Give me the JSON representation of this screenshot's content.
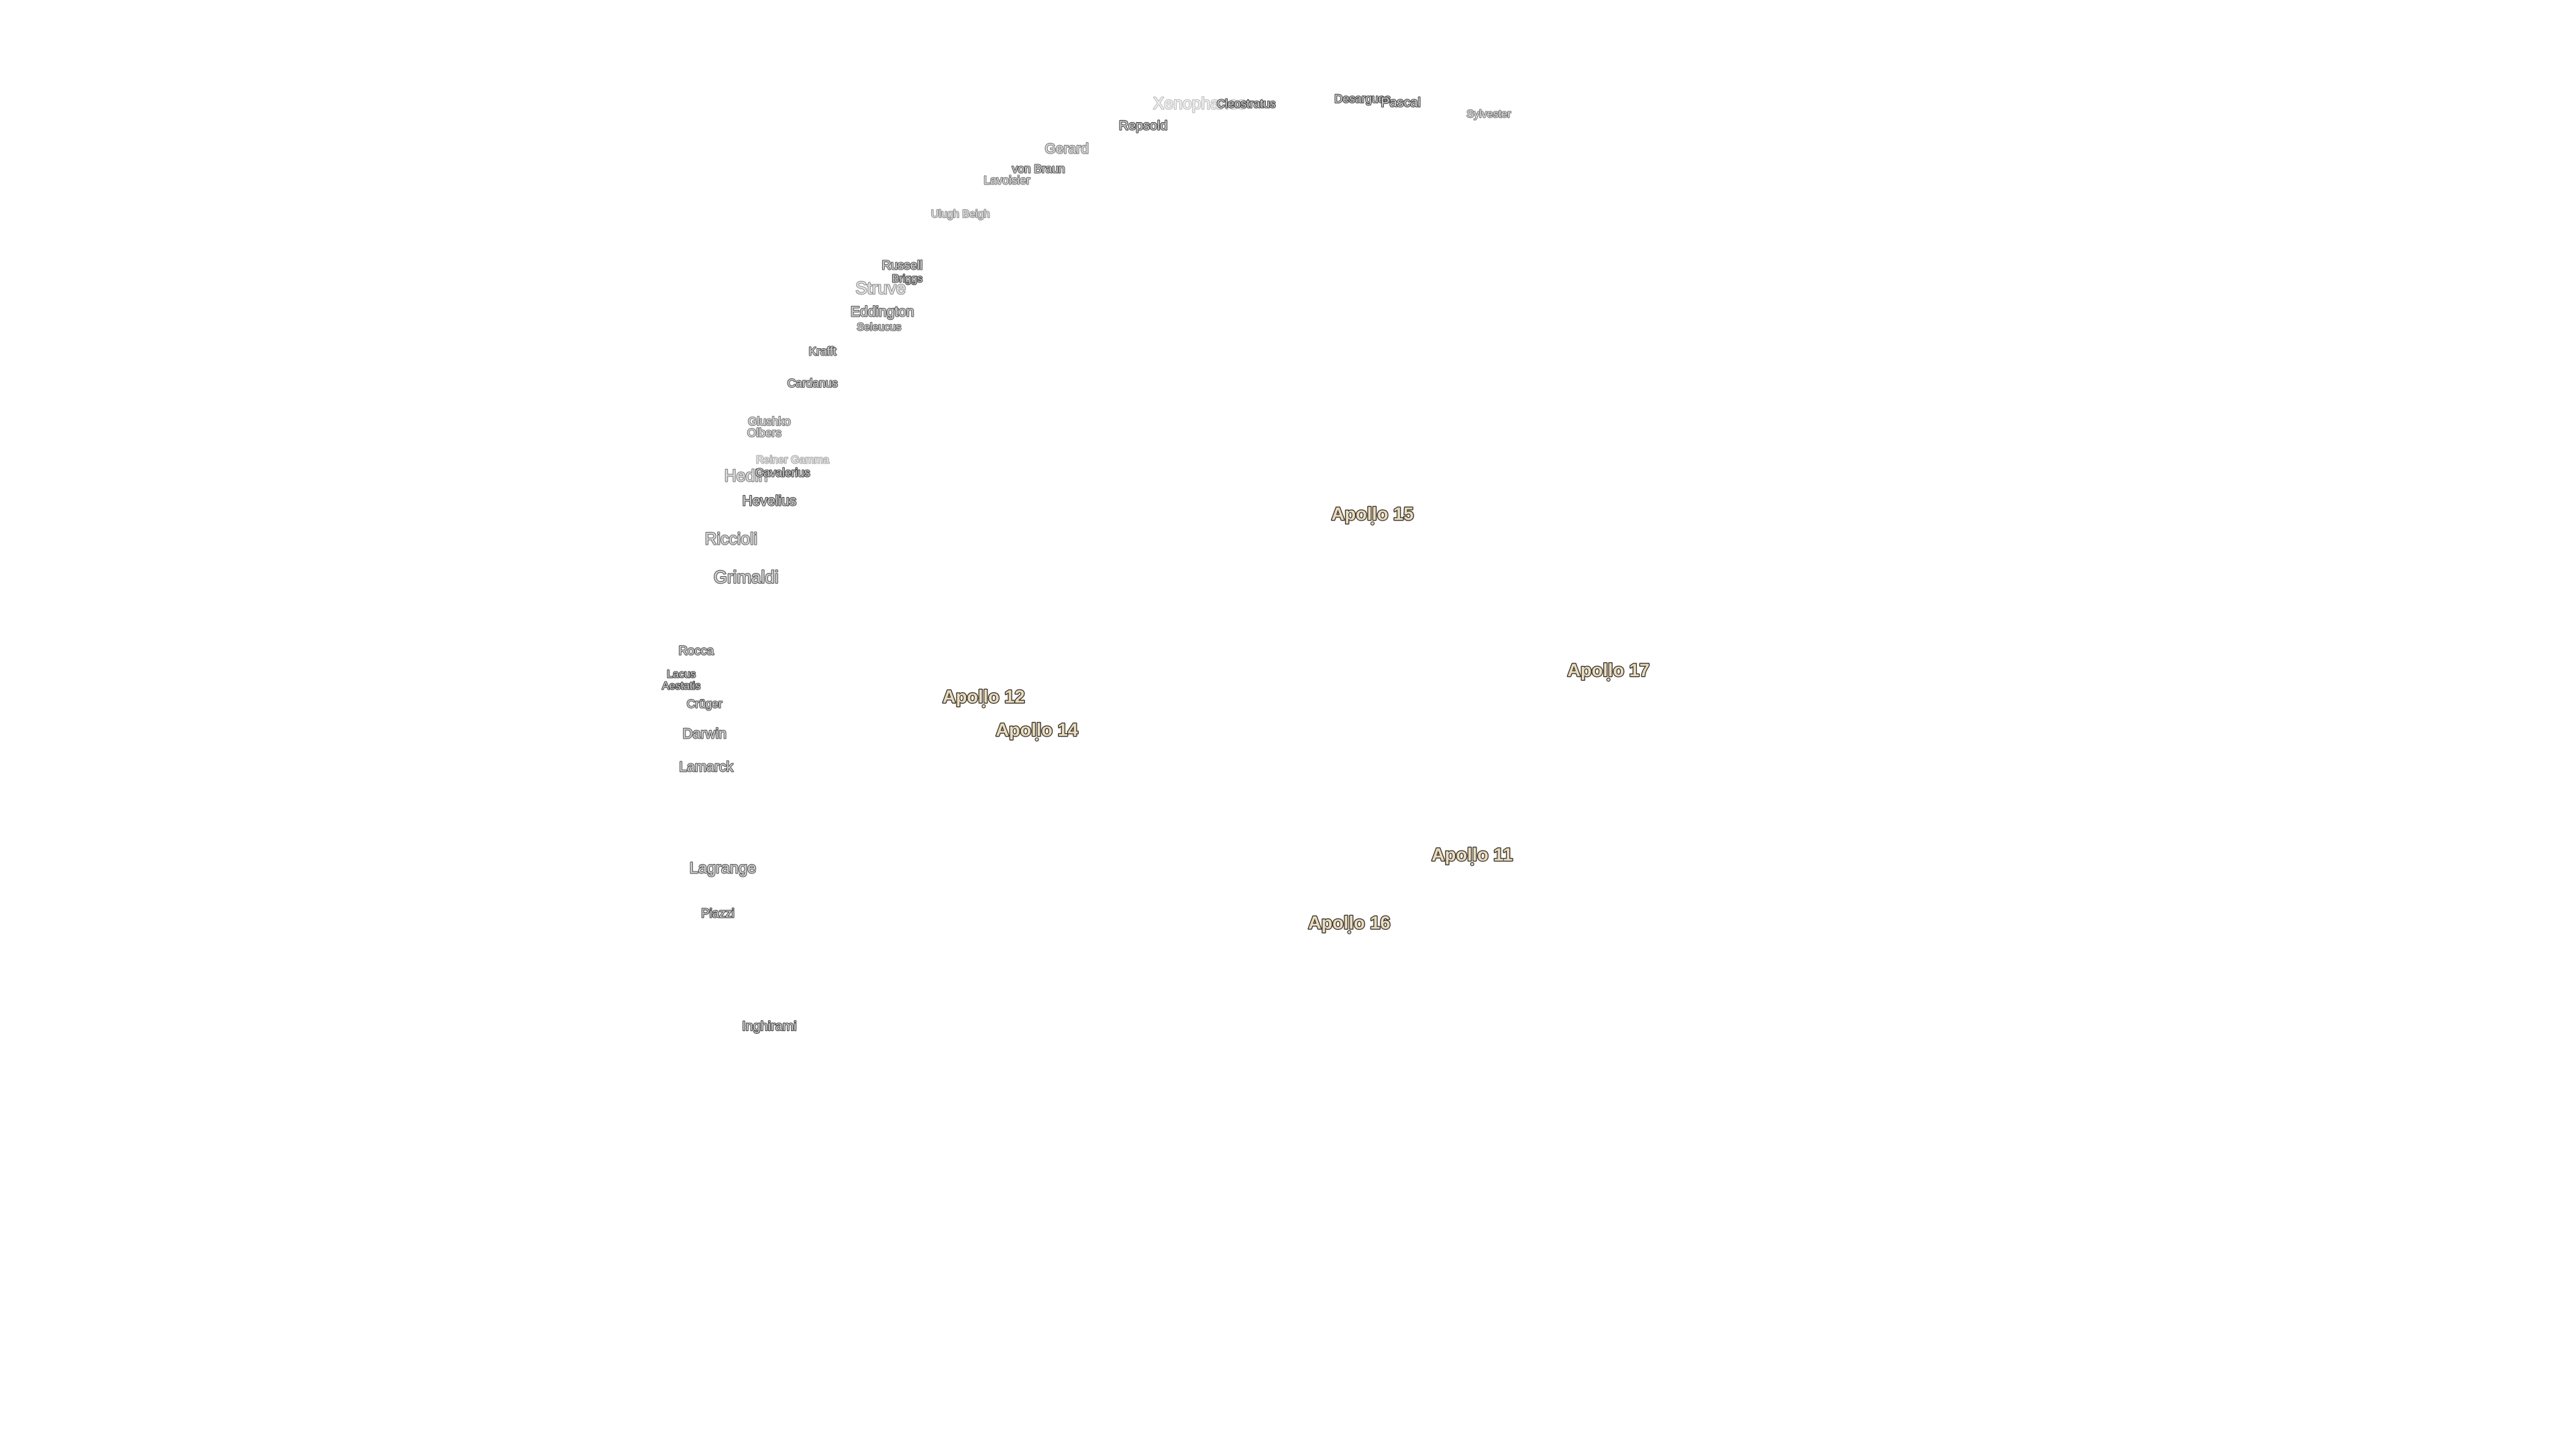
{
  "craters": [
    {
      "name": "Xenophanes"
    },
    {
      "name": "Cleostratus"
    },
    {
      "name": "Desargues"
    },
    {
      "name": "Pascal"
    },
    {
      "name": "Sylvester"
    },
    {
      "name": "Repsold"
    },
    {
      "name": "Gerard"
    },
    {
      "name": "von Braun"
    },
    {
      "name": "Lavoisier"
    },
    {
      "name": "Ulugh Beigh"
    },
    {
      "name": "Russell"
    },
    {
      "name": "Briggs"
    },
    {
      "name": "Struve"
    },
    {
      "name": "Eddington"
    },
    {
      "name": "Seleucus"
    },
    {
      "name": "Krafft"
    },
    {
      "name": "Cardanus"
    },
    {
      "name": "Glushko"
    },
    {
      "name": "Olbers"
    },
    {
      "name": "Reiner Gamma"
    },
    {
      "name": "Hedin"
    },
    {
      "name": "Cavalerius"
    },
    {
      "name": "Hevelius"
    },
    {
      "name": "Riccioli"
    },
    {
      "name": "Grimaldi"
    },
    {
      "name": "Rocca"
    },
    {
      "name": "Lacus"
    },
    {
      "name": "Aestatis"
    },
    {
      "name": "Crüger"
    },
    {
      "name": "Darwin"
    },
    {
      "name": "Lamarck"
    },
    {
      "name": "Lagrange"
    },
    {
      "name": "Piazzi"
    },
    {
      "name": "Inghirami"
    }
  ],
  "landing_sites": [
    {
      "name": "Apollo 15"
    },
    {
      "name": "Apollo 17"
    },
    {
      "name": "Apollo 12"
    },
    {
      "name": "Apollo 14"
    },
    {
      "name": "Apollo 11"
    },
    {
      "name": "Apollo 16"
    }
  ]
}
